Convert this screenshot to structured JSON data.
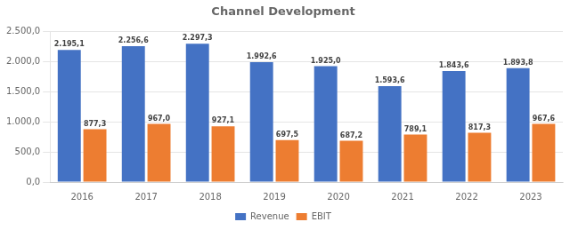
{
  "chart_data": {
    "type": "bar",
    "title": "Channel Development",
    "categories": [
      "2016",
      "2017",
      "2018",
      "2019",
      "2020",
      "2021",
      "2022",
      "2023"
    ],
    "series": [
      {
        "name": "Revenue",
        "color": "#4472C4",
        "values": [
          2195.1,
          2256.6,
          2297.3,
          1992.6,
          1925.0,
          1593.6,
          1843.6,
          1893.8
        ],
        "value_labels": [
          "2.195,1",
          "2.256,6",
          "2.297,3",
          "1.992,6",
          "1.925,0",
          "1.593,6",
          "1.843,6",
          "1.893,8"
        ]
      },
      {
        "name": "EBIT",
        "color": "#ED7D31",
        "values": [
          877.3,
          967.0,
          927.1,
          697.5,
          687.2,
          789.1,
          817.3,
          967.6
        ],
        "value_labels": [
          "877,3",
          "967,0",
          "927,1",
          "697,5",
          "687,2",
          "789,1",
          "817,3",
          "967,6"
        ]
      }
    ],
    "ylim": [
      0,
      2500
    ],
    "yticks": [
      {
        "value": 0,
        "label": "0,0"
      },
      {
        "value": 500,
        "label": "500,0"
      },
      {
        "value": 1000,
        "label": "1.000,0"
      },
      {
        "value": 1500,
        "label": "1.500,0"
      },
      {
        "value": 2000,
        "label": "2.000,0"
      },
      {
        "value": 2500,
        "label": "2.500,0"
      }
    ],
    "grid": true,
    "legend": "bottom",
    "data_labels": true
  }
}
